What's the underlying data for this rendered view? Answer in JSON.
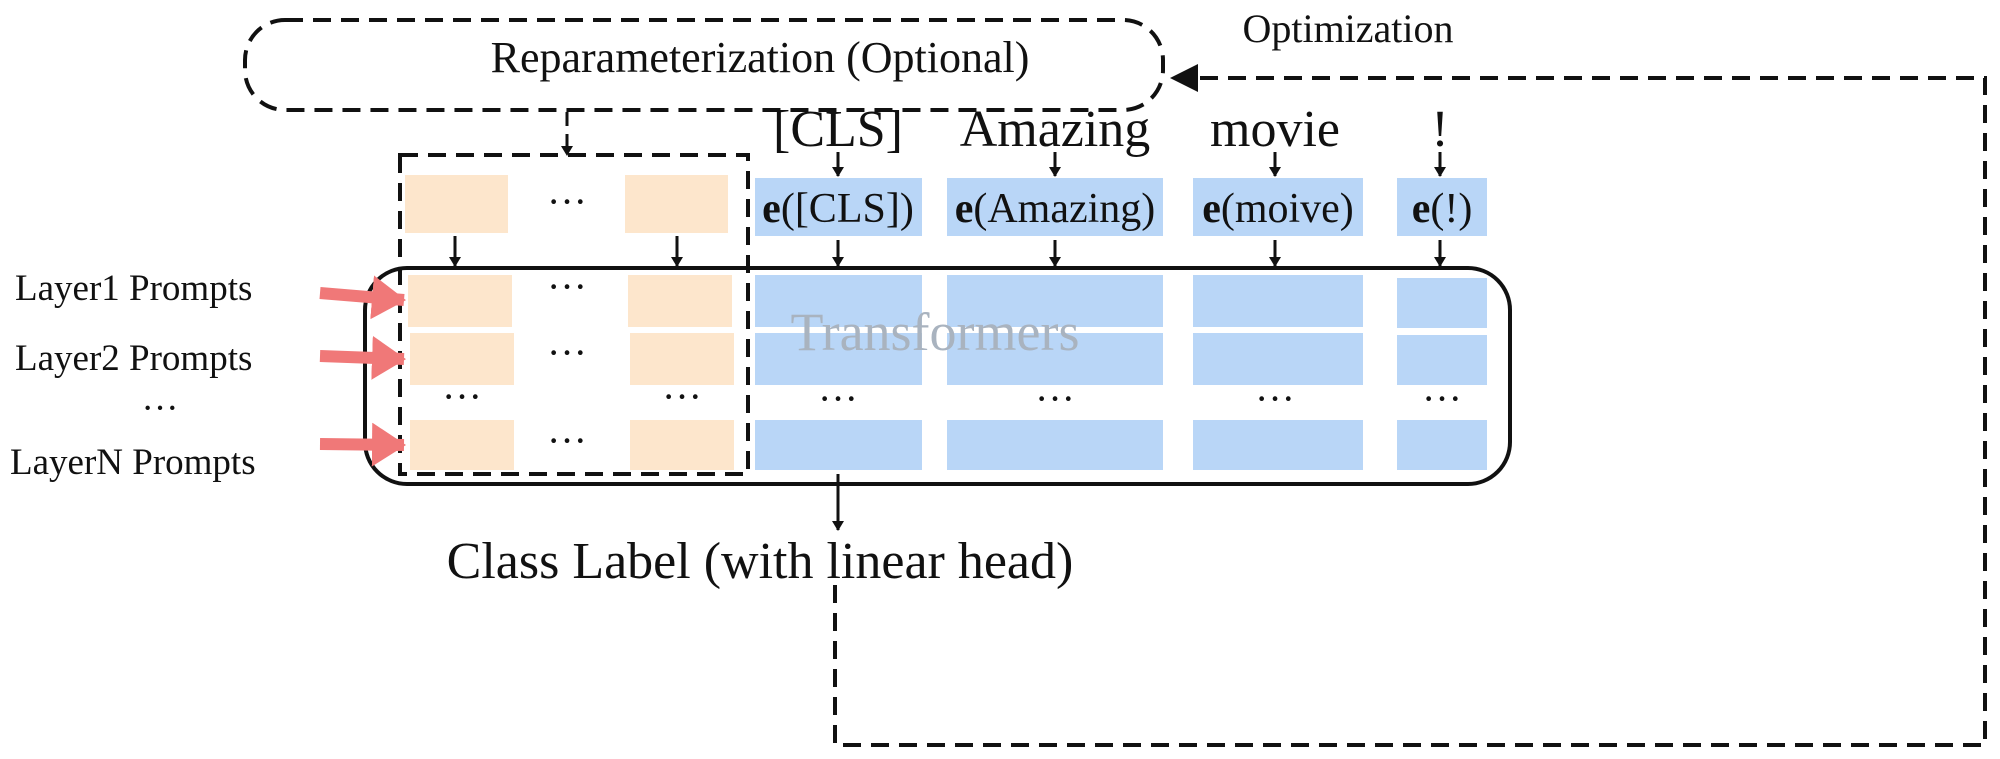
{
  "reparameterization": {
    "label": "Reparameterization (Optional)"
  },
  "optimization": {
    "label": "Optimization"
  },
  "tokens": [
    {
      "word": "[CLS]",
      "embedding_prefix": "e",
      "embedding_arg": "([CLS])"
    },
    {
      "word": "Amazing",
      "embedding_prefix": "e",
      "embedding_arg": "(Amazing)"
    },
    {
      "word": "movie",
      "embedding_prefix": "e",
      "embedding_arg": "(moive)"
    },
    {
      "word": "!",
      "embedding_prefix": "e",
      "embedding_arg": "(!)"
    }
  ],
  "ellipsis": "···",
  "transformer": {
    "label": "Transformers"
  },
  "layers": [
    {
      "label": "Layer1 Prompts"
    },
    {
      "label": "Layer2 Prompts"
    },
    {
      "label": "···"
    },
    {
      "label": "LayerN Prompts"
    }
  ],
  "output": {
    "label": "Class Label (with linear head)"
  },
  "colors": {
    "prompt": "#fde6cc",
    "token": "#b9d6f7",
    "prompt_arrow": "#f07878",
    "transformer_text": "#a9b3bf"
  }
}
